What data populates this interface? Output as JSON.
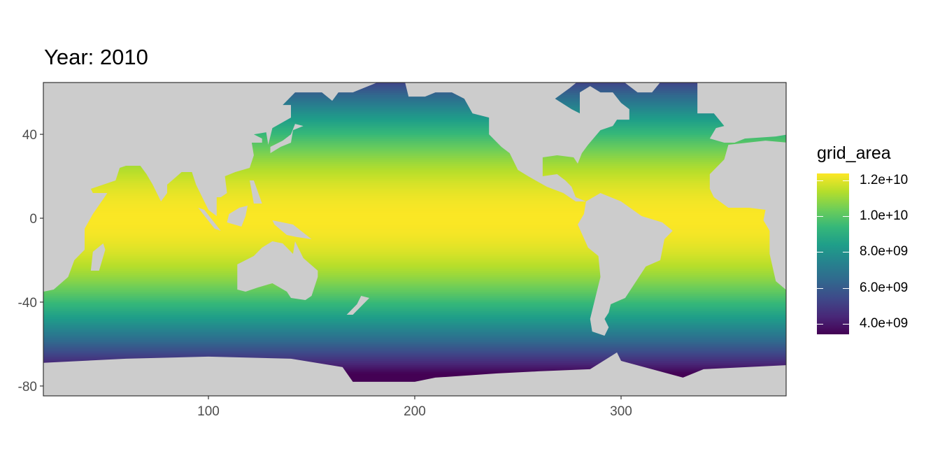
{
  "chart_data": {
    "type": "heatmap",
    "title": "Year: 2010",
    "xlabel": "",
    "ylabel": "",
    "xlim": [
      20,
      380
    ],
    "ylim": [
      -84.7,
      64.7
    ],
    "x_ticks": [
      "100",
      "200",
      "300"
    ],
    "x_tick_values": [
      100,
      200,
      300
    ],
    "y_ticks": [
      "40",
      "0",
      "-40",
      "-80"
    ],
    "y_tick_values": [
      40,
      0,
      -40,
      -80
    ],
    "fill_variable": "grid_area",
    "fill_description": "ocean grid cell area, largest at equator and decreasing toward poles",
    "fill_range": [
      3400000000.0,
      12400000000.0
    ],
    "colormap": "viridis",
    "land_color": "#cccccc",
    "missing_color": "#ffffff",
    "legend": {
      "title": "grid_area",
      "position": "right",
      "labels": [
        "1.2e+10",
        "1.0e+10",
        "8.0e+09",
        "6.0e+09",
        "4.0e+09"
      ],
      "label_values": [
        12000000000.0,
        10000000000.0,
        8000000000.0,
        6000000000.0,
        4000000000.0
      ]
    },
    "grid": false
  }
}
